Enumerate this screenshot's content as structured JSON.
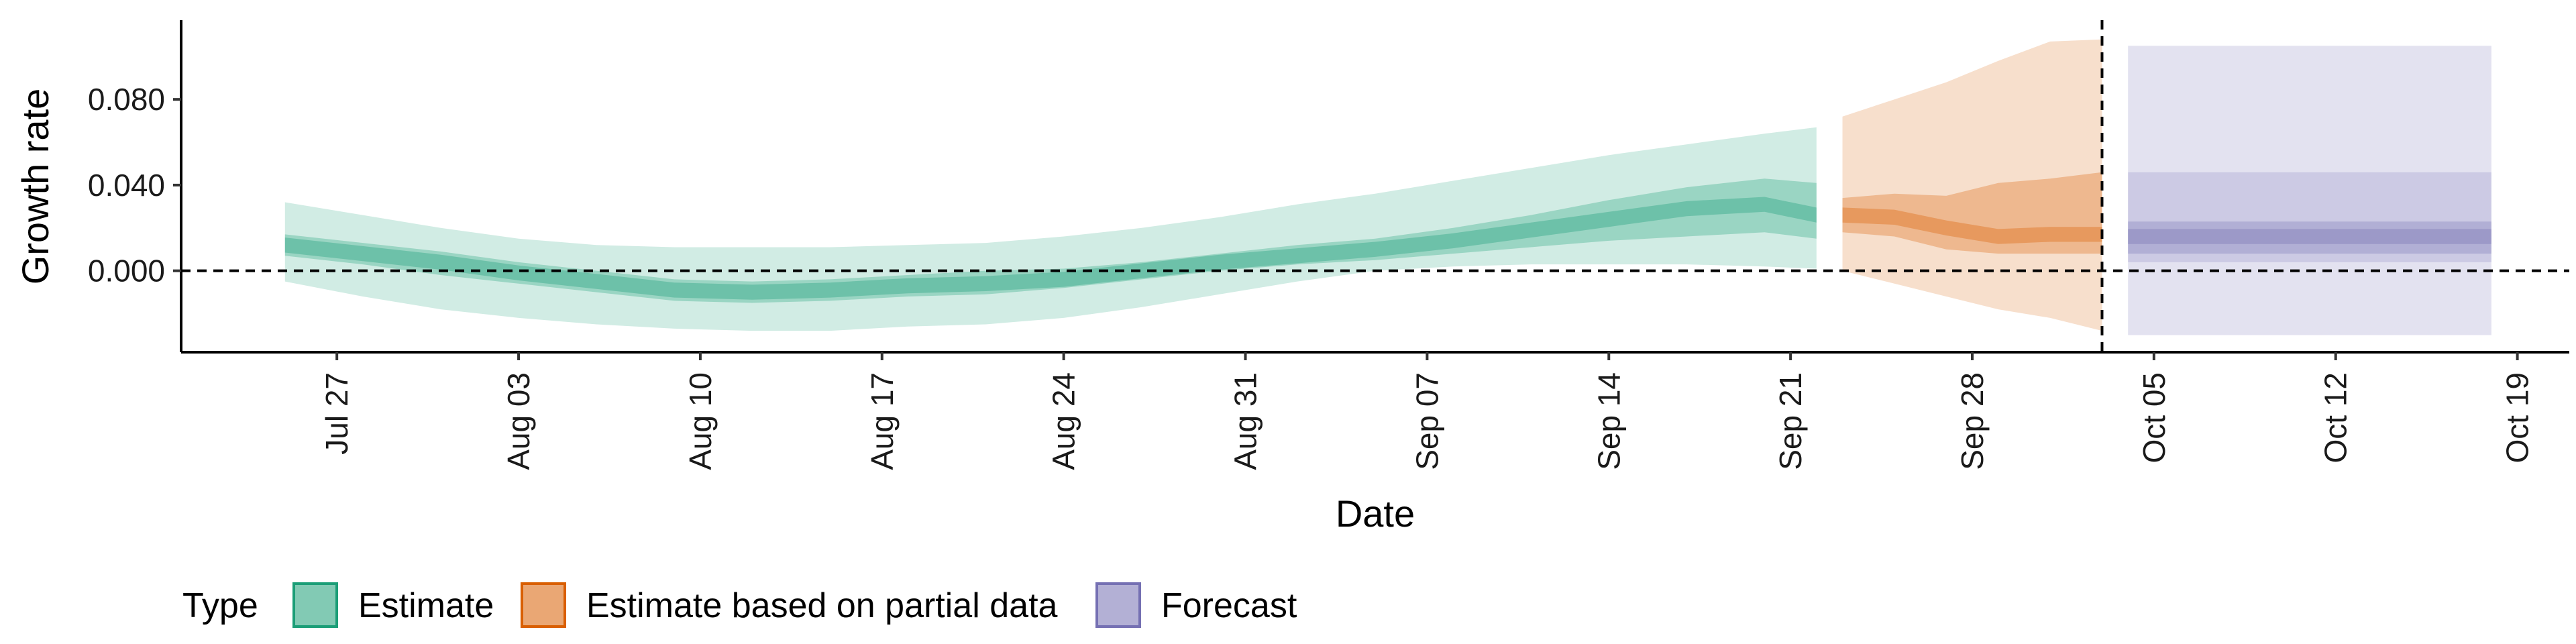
{
  "chart_data": {
    "type": "area",
    "xlabel": "Date",
    "ylabel": "Growth rate",
    "x_ticks": [
      "2020-07-27",
      "2020-08-03",
      "2020-08-10",
      "2020-08-17",
      "2020-08-24",
      "2020-08-31",
      "2020-09-07",
      "2020-09-14",
      "2020-09-21",
      "2020-09-28",
      "2020-10-05",
      "2020-10-12",
      "2020-10-19"
    ],
    "x_tick_labels": [
      "Jul 27",
      "Aug 03",
      "Aug 10",
      "Aug 17",
      "Aug 24",
      "Aug 31",
      "Sep 07",
      "Sep 14",
      "Sep 21",
      "Sep 28",
      "Oct 05",
      "Oct 12",
      "Oct 19"
    ],
    "y_ticks": [
      0.0,
      0.04,
      0.08
    ],
    "y_tick_labels": [
      "0.000",
      "0.040",
      "0.080"
    ],
    "xlim": [
      "2020-07-21",
      "2020-10-21"
    ],
    "ylim": [
      -0.038,
      0.117
    ],
    "reference_lines": {
      "horizontal_y": 0.0,
      "vertical_date": "2020-10-03"
    },
    "legend": {
      "title": "Type",
      "position": "bottom",
      "items": [
        {
          "label": "Estimate",
          "fill": "#1b9e77",
          "key": "estimate"
        },
        {
          "label": "Estimate based on partial data",
          "fill": "#d95f02",
          "key": "partial"
        },
        {
          "label": "Forecast",
          "fill": "#7570b3",
          "key": "forecast"
        }
      ]
    },
    "series": [
      {
        "key": "estimate",
        "color": "#1b9e77",
        "dates": [
          "2020-07-25",
          "2020-07-28",
          "2020-07-31",
          "2020-08-03",
          "2020-08-06",
          "2020-08-09",
          "2020-08-12",
          "2020-08-15",
          "2020-08-18",
          "2020-08-21",
          "2020-08-24",
          "2020-08-27",
          "2020-08-30",
          "2020-09-02",
          "2020-09-05",
          "2020-09-08",
          "2020-09-11",
          "2020-09-14",
          "2020-09-17",
          "2020-09-20",
          "2020-09-22"
        ],
        "median": [
          0.012,
          0.008,
          0.004,
          -0.001,
          -0.005,
          -0.009,
          -0.01,
          -0.009,
          -0.007,
          -0.006,
          -0.004,
          0.0,
          0.004,
          0.007,
          0.01,
          0.014,
          0.019,
          0.024,
          0.029,
          0.031,
          0.026
        ],
        "lower_50": [
          0.007,
          0.003,
          -0.002,
          -0.006,
          -0.01,
          -0.014,
          -0.015,
          -0.014,
          -0.012,
          -0.011,
          -0.008,
          -0.004,
          0.0,
          0.003,
          0.005,
          0.008,
          0.011,
          0.014,
          0.016,
          0.018,
          0.015
        ],
        "upper_50": [
          0.017,
          0.013,
          0.009,
          0.004,
          0.0,
          -0.004,
          -0.005,
          -0.004,
          -0.002,
          0.0,
          0.001,
          0.004,
          0.008,
          0.012,
          0.015,
          0.02,
          0.026,
          0.033,
          0.039,
          0.043,
          0.041
        ],
        "lower_90": [
          -0.005,
          -0.012,
          -0.018,
          -0.022,
          -0.025,
          -0.027,
          -0.028,
          -0.028,
          -0.026,
          -0.025,
          -0.022,
          -0.017,
          -0.011,
          -0.005,
          0.0,
          0.002,
          0.003,
          0.003,
          0.003,
          0.002,
          0.001
        ],
        "upper_90": [
          0.032,
          0.026,
          0.02,
          0.015,
          0.012,
          0.011,
          0.011,
          0.011,
          0.012,
          0.013,
          0.016,
          0.02,
          0.025,
          0.031,
          0.036,
          0.042,
          0.048,
          0.054,
          0.059,
          0.064,
          0.067
        ]
      },
      {
        "key": "partial",
        "color": "#d95f02",
        "dates": [
          "2020-09-23",
          "2020-09-25",
          "2020-09-27",
          "2020-09-29",
          "2020-10-01",
          "2020-10-03"
        ],
        "median": [
          0.026,
          0.025,
          0.02,
          0.016,
          0.017,
          0.017
        ],
        "lower_50": [
          0.018,
          0.016,
          0.01,
          0.008,
          0.008,
          0.008
        ],
        "upper_50": [
          0.034,
          0.036,
          0.035,
          0.041,
          0.043,
          0.046
        ],
        "lower_90": [
          0.0,
          -0.006,
          -0.012,
          -0.018,
          -0.022,
          -0.028
        ],
        "upper_90": [
          0.072,
          0.08,
          0.088,
          0.098,
          0.107,
          0.108
        ]
      },
      {
        "key": "forecast",
        "color": "#7570b3",
        "dates": [
          "2020-10-04",
          "2020-10-18"
        ],
        "median": [
          0.016,
          0.016
        ],
        "lower_50": [
          0.008,
          0.008
        ],
        "upper_50": [
          0.023,
          0.023
        ],
        "lower_80": [
          0.004,
          0.004
        ],
        "upper_80": [
          0.046,
          0.046
        ],
        "lower_90": [
          -0.03,
          -0.03
        ],
        "upper_90": [
          0.105,
          0.105
        ]
      }
    ]
  }
}
